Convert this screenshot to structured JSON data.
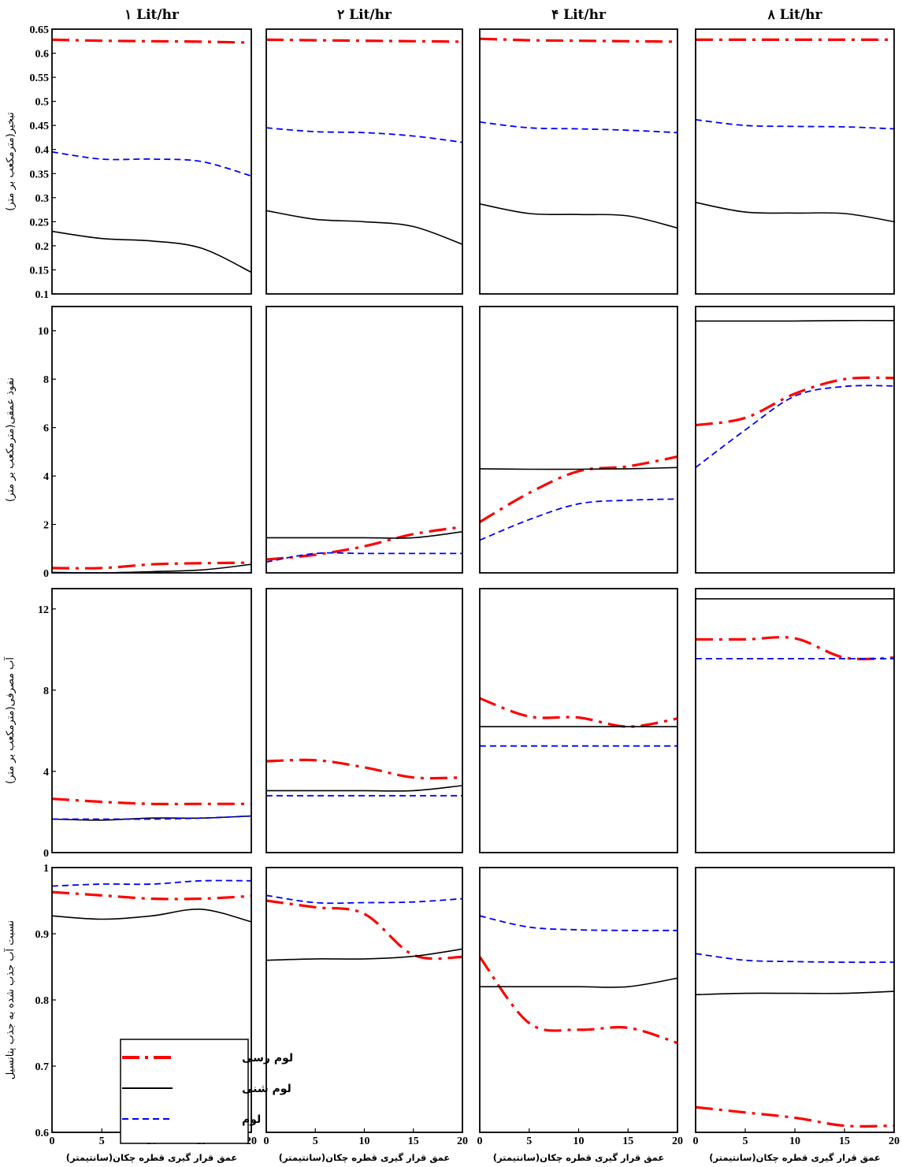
{
  "columns": [
    "١ Lit/hr",
    "٢ Lit/hr",
    "۴ Lit/hr",
    "٨ Lit/hr"
  ],
  "x_axis_label": "عمق قرار گیری قطره چکان(سانتیمتر)",
  "legend": {
    "position": "lower-left of bottom-left panel",
    "entries": [
      "لوم رسی",
      "لوم شنی",
      "لوم"
    ]
  },
  "series_styles": [
    {
      "name": "لوم رسی",
      "color": "#ff0000",
      "style": "dash-dot"
    },
    {
      "name": "لوم شنی",
      "color": "#000000",
      "style": "solid"
    },
    {
      "name": "لوم",
      "color": "#0000ff",
      "style": "dashed"
    }
  ],
  "chart_data": [
    {
      "row": 1,
      "type": "line",
      "ylabel": "تبخیر(مترمکعب بر متر)",
      "ylim": [
        0.1,
        0.65
      ],
      "yticks": [
        0.1,
        0.15,
        0.2,
        0.25,
        0.3,
        0.35,
        0.4,
        0.45,
        0.5,
        0.55,
        0.6,
        0.65
      ],
      "ytick_labels": [
        "0.1",
        "0.15",
        "0.2",
        "0.25",
        "0.3",
        "0.35",
        "0.4",
        "0.45",
        "0.5",
        "0.55",
        "0.6",
        "0.65"
      ],
      "xlim": [
        0,
        20
      ],
      "panels": [
        {
          "x": [
            0,
            5,
            10,
            15,
            20
          ],
          "series": [
            {
              "name": "لوم رسی",
              "values": [
                0.628,
                0.626,
                0.625,
                0.624,
                0.622
              ]
            },
            {
              "name": "لوم شنی",
              "values": [
                0.23,
                0.215,
                0.21,
                0.195,
                0.145
              ]
            },
            {
              "name": "لوم",
              "values": [
                0.395,
                0.38,
                0.38,
                0.375,
                0.345
              ]
            }
          ]
        },
        {
          "x": [
            0,
            5,
            10,
            15,
            20
          ],
          "series": [
            {
              "name": "لوم رسی",
              "values": [
                0.628,
                0.627,
                0.626,
                0.625,
                0.624
              ]
            },
            {
              "name": "لوم شنی",
              "values": [
                0.273,
                0.255,
                0.25,
                0.24,
                0.203
              ]
            },
            {
              "name": "لوم",
              "values": [
                0.445,
                0.437,
                0.435,
                0.428,
                0.415
              ]
            }
          ]
        },
        {
          "x": [
            0,
            5,
            10,
            15,
            20
          ],
          "series": [
            {
              "name": "لوم رسی",
              "values": [
                0.63,
                0.627,
                0.626,
                0.625,
                0.624
              ]
            },
            {
              "name": "لوم شنی",
              "values": [
                0.287,
                0.267,
                0.265,
                0.262,
                0.237
              ]
            },
            {
              "name": "لوم",
              "values": [
                0.457,
                0.445,
                0.443,
                0.44,
                0.435
              ]
            }
          ]
        },
        {
          "x": [
            0,
            5,
            10,
            15,
            20
          ],
          "series": [
            {
              "name": "لوم رسی",
              "values": [
                0.628,
                0.628,
                0.628,
                0.628,
                0.628
              ]
            },
            {
              "name": "لوم شنی",
              "values": [
                0.29,
                0.27,
                0.268,
                0.267,
                0.25
              ]
            },
            {
              "name": "لوم",
              "values": [
                0.462,
                0.45,
                0.448,
                0.447,
                0.443
              ]
            }
          ]
        }
      ]
    },
    {
      "row": 2,
      "type": "line",
      "ylabel": "نفوذ عمقی(مترمکعب بر متر)",
      "ylim": [
        0,
        11
      ],
      "yticks": [
        0,
        2,
        4,
        6,
        8,
        10
      ],
      "ytick_labels": [
        "0",
        "2",
        "4",
        "6",
        "8",
        "10"
      ],
      "xlim": [
        0,
        20
      ],
      "panels": [
        {
          "x": [
            0,
            5,
            10,
            15,
            20
          ],
          "series": [
            {
              "name": "لوم رسی",
              "values": [
                0.2,
                0.2,
                0.35,
                0.4,
                0.42
              ]
            },
            {
              "name": "لوم شنی",
              "values": [
                0.02,
                0.0,
                0.05,
                0.12,
                0.35
              ]
            },
            {
              "name": "لوم",
              "values": [
                0.0,
                0.0,
                0.0,
                0.0,
                0.0
              ]
            }
          ]
        },
        {
          "x": [
            0,
            5,
            10,
            15,
            20
          ],
          "series": [
            {
              "name": "لوم رسی",
              "values": [
                0.55,
                0.75,
                1.1,
                1.6,
                1.9
              ]
            },
            {
              "name": "لوم شنی",
              "values": [
                1.45,
                1.45,
                1.45,
                1.45,
                1.7
              ]
            },
            {
              "name": "لوم",
              "values": [
                0.45,
                0.8,
                0.8,
                0.8,
                0.8
              ]
            }
          ]
        },
        {
          "x": [
            0,
            5,
            10,
            15,
            20
          ],
          "series": [
            {
              "name": "لوم رسی",
              "values": [
                2.1,
                3.3,
                4.2,
                4.4,
                4.8
              ]
            },
            {
              "name": "لوم شنی",
              "values": [
                4.3,
                4.28,
                4.28,
                4.3,
                4.35
              ]
            },
            {
              "name": "لوم",
              "values": [
                1.35,
                2.2,
                2.85,
                3.0,
                3.05
              ]
            }
          ]
        },
        {
          "x": [
            0,
            5,
            10,
            15,
            20
          ],
          "series": [
            {
              "name": "لوم رسی",
              "values": [
                6.1,
                6.4,
                7.4,
                8.0,
                8.05
              ]
            },
            {
              "name": "لوم شنی",
              "values": [
                10.4,
                10.4,
                10.4,
                10.42,
                10.42
              ]
            },
            {
              "name": "لوم",
              "values": [
                4.35,
                5.9,
                7.3,
                7.7,
                7.72
              ]
            }
          ]
        }
      ]
    },
    {
      "row": 3,
      "type": "line",
      "ylabel": "آب مصرفی(مترمکعب بر متر)",
      "ylim": [
        0,
        13
      ],
      "yticks": [
        0,
        4,
        8,
        12
      ],
      "ytick_labels": [
        "0",
        "4",
        "8",
        "12"
      ],
      "xlim": [
        0,
        20
      ],
      "panels": [
        {
          "x": [
            0,
            5,
            10,
            15,
            20
          ],
          "series": [
            {
              "name": "لوم رسی",
              "values": [
                2.65,
                2.5,
                2.4,
                2.4,
                2.4
              ]
            },
            {
              "name": "لوم شنی",
              "values": [
                1.65,
                1.6,
                1.7,
                1.7,
                1.8
              ]
            },
            {
              "name": "لوم",
              "values": [
                1.65,
                1.65,
                1.65,
                1.7,
                1.8
              ]
            }
          ]
        },
        {
          "x": [
            0,
            5,
            10,
            15,
            20
          ],
          "series": [
            {
              "name": "لوم رسی",
              "values": [
                4.5,
                4.55,
                4.2,
                3.7,
                3.7
              ]
            },
            {
              "name": "لوم شنی",
              "values": [
                3.05,
                3.05,
                3.05,
                3.05,
                3.3
              ]
            },
            {
              "name": "لوم",
              "values": [
                2.8,
                2.8,
                2.8,
                2.8,
                2.8
              ]
            }
          ]
        },
        {
          "x": [
            0,
            5,
            10,
            15,
            20
          ],
          "series": [
            {
              "name": "لوم رسی",
              "values": [
                7.6,
                6.7,
                6.65,
                6.2,
                6.6
              ]
            },
            {
              "name": "لوم شنی",
              "values": [
                6.2,
                6.2,
                6.2,
                6.2,
                6.2
              ]
            },
            {
              "name": "لوم",
              "values": [
                5.25,
                5.25,
                5.25,
                5.25,
                5.25
              ]
            }
          ]
        },
        {
          "x": [
            0,
            5,
            10,
            15,
            20
          ],
          "series": [
            {
              "name": "لوم رسی",
              "values": [
                10.5,
                10.5,
                10.55,
                9.6,
                9.6
              ]
            },
            {
              "name": "لوم شنی",
              "values": [
                12.5,
                12.5,
                12.5,
                12.5,
                12.5
              ]
            },
            {
              "name": "لوم",
              "values": [
                9.55,
                9.55,
                9.55,
                9.55,
                9.55
              ]
            }
          ]
        }
      ]
    },
    {
      "row": 4,
      "type": "line",
      "ylabel": "نسبت آب جذب شده به جذب پتانسیل",
      "ylim": [
        0.6,
        1.0
      ],
      "yticks": [
        0.6,
        0.7,
        0.8,
        0.9,
        1.0
      ],
      "ytick_labels": [
        "0.6",
        "0.7",
        "0.8",
        "0.9",
        "1"
      ],
      "xlim": [
        0,
        20
      ],
      "xticks": [
        0,
        5,
        10,
        15,
        20
      ],
      "xtick_labels": [
        "0",
        "5",
        "10",
        "15",
        "20"
      ],
      "panels": [
        {
          "x": [
            0,
            5,
            10,
            15,
            20
          ],
          "series": [
            {
              "name": "لوم رسی",
              "values": [
                0.963,
                0.958,
                0.953,
                0.953,
                0.957
              ]
            },
            {
              "name": "لوم شنی",
              "values": [
                0.927,
                0.922,
                0.927,
                0.937,
                0.918
              ]
            },
            {
              "name": "لوم",
              "values": [
                0.972,
                0.975,
                0.975,
                0.98,
                0.98
              ]
            }
          ]
        },
        {
          "x": [
            0,
            5,
            10,
            15,
            20
          ],
          "series": [
            {
              "name": "لوم رسی",
              "values": [
                0.95,
                0.94,
                0.93,
                0.868,
                0.865
              ]
            },
            {
              "name": "لوم شنی",
              "values": [
                0.86,
                0.862,
                0.862,
                0.866,
                0.877
              ]
            },
            {
              "name": "لوم",
              "values": [
                0.958,
                0.947,
                0.947,
                0.948,
                0.953
              ]
            }
          ]
        },
        {
          "x": [
            0,
            5,
            10,
            15,
            20
          ],
          "series": [
            {
              "name": "لوم رسی",
              "values": [
                0.865,
                0.765,
                0.755,
                0.758,
                0.735
              ]
            },
            {
              "name": "لوم شنی",
              "values": [
                0.82,
                0.82,
                0.82,
                0.82,
                0.833
              ]
            },
            {
              "name": "لوم",
              "values": [
                0.927,
                0.91,
                0.906,
                0.905,
                0.905
              ]
            }
          ]
        },
        {
          "x": [
            0,
            5,
            10,
            15,
            20
          ],
          "series": [
            {
              "name": "لوم رسی",
              "values": [
                0.638,
                0.63,
                0.622,
                0.61,
                0.61
              ]
            },
            {
              "name": "لوم شنی",
              "values": [
                0.808,
                0.81,
                0.81,
                0.81,
                0.813
              ]
            },
            {
              "name": "لوم",
              "values": [
                0.87,
                0.86,
                0.858,
                0.857,
                0.857
              ]
            }
          ]
        }
      ]
    }
  ]
}
